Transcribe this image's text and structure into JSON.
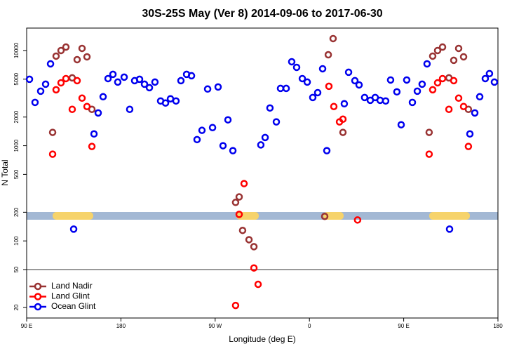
{
  "chart_data": {
    "type": "scatter",
    "title": "30S-25S May (Ver 8)   2014-09-06 to 2017-06-30",
    "x_label": "Longitude (deg E)",
    "y_label": "N Total",
    "xlim": [
      90,
      540
    ],
    "xticks": [
      {
        "value": 90,
        "label": "90 E"
      },
      180,
      {
        "value": 270,
        "label": "90 W"
      },
      {
        "value": 360,
        "label": "0"
      },
      {
        "value": 450,
        "label": "90 E"
      },
      {
        "value": 540,
        "label": "180"
      }
    ],
    "ylim": [
      15.5,
      17200
    ],
    "ylog": true,
    "yticks": [
      20,
      50,
      100,
      200,
      500,
      1000,
      2000,
      5000,
      10000
    ],
    "legend": "lower left",
    "series": [
      {
        "name": "Land Nadir",
        "color": "#993333",
        "x": [
          114.8,
          118.1,
          122.8,
          127.5,
          133.5,
          138.2,
          142.9,
          147.6,
          152.3,
          289.5,
          292.9,
          296.2,
          302.3,
          307.0,
          374.6,
          378.0,
          382.6,
          392.0,
          474.3,
          477.7,
          482.4,
          487.1,
          493.2,
          497.8,
          502.5,
          507.2,
          511.8
        ],
        "values": [
          1380,
          8730,
          10000,
          10870,
          5160,
          8020,
          10520,
          8580,
          2410,
          254,
          290,
          129,
          103,
          87,
          181,
          9020,
          13340,
          1380,
          1380,
          8730,
          10000,
          10870,
          5160,
          7890,
          10520,
          8580,
          2410
        ]
      },
      {
        "name": "Land Glint",
        "color": "#ff0000",
        "x": [
          114.8,
          118.1,
          122.8,
          127.5,
          133.5,
          138.2,
          142.9,
          147.6,
          152.3,
          289.5,
          292.9,
          297.6,
          307.0,
          311.0,
          378.6,
          383.3,
          388.7,
          392.0,
          406.0,
          474.3,
          477.7,
          482.4,
          487.1,
          493.2,
          497.8,
          502.5,
          507.2,
          511.8
        ],
        "values": [
          815,
          3870,
          4580,
          5070,
          2410,
          4820,
          3160,
          2580,
          982,
          21,
          190,
          400,
          52,
          35,
          4210,
          2580,
          1780,
          1900,
          166,
          815,
          3870,
          4580,
          5070,
          2410,
          4820,
          3160,
          2580,
          982
        ]
      },
      {
        "name": "Ocean Glint",
        "color": "#0000ee",
        "x": [
          92.7,
          98.0,
          103.4,
          108.1,
          112.8,
          134.9,
          154.3,
          158.3,
          163.0,
          167.7,
          172.4,
          177.0,
          183.1,
          188.4,
          193.1,
          197.8,
          202.5,
          207.2,
          212.5,
          217.9,
          222.6,
          227.3,
          232.6,
          237.3,
          242.7,
          247.4,
          252.7,
          257.4,
          262.8,
          267.5,
          272.8,
          277.5,
          282.2,
          286.9,
          313.6,
          317.7,
          322.3,
          328.4,
          332.4,
          337.8,
          343.1,
          347.8,
          353.2,
          357.9,
          363.2,
          367.9,
          372.6,
          376.6,
          393.3,
          397.4,
          403.4,
          407.4,
          412.7,
          418.1,
          422.8,
          427.5,
          432.8,
          437.5,
          443.5,
          447.6,
          452.9,
          458.3,
          463.0,
          467.6,
          472.3,
          493.8,
          513.2,
          517.9,
          522.6,
          527.9,
          531.9,
          536.6
        ],
        "values": [
          4990,
          2850,
          3740,
          4430,
          7240,
          133,
          1330,
          2210,
          3270,
          5070,
          5620,
          4660,
          5250,
          2410,
          4820,
          4990,
          4430,
          4070,
          4660,
          2950,
          2810,
          3110,
          2950,
          4820,
          5620,
          5430,
          1160,
          1450,
          3940,
          1550,
          4140,
          1000,
          1870,
          887,
          1020,
          1220,
          2490,
          1780,
          4000,
          4000,
          7620,
          6650,
          5070,
          4660,
          3210,
          3610,
          6430,
          887,
          2760,
          5910,
          4820,
          4350,
          3210,
          3000,
          3210,
          3000,
          2950,
          4900,
          3680,
          1660,
          4900,
          2850,
          3740,
          4430,
          7240,
          133,
          1330,
          2210,
          3270,
          5070,
          5720,
          4660
        ]
      }
    ]
  }
}
